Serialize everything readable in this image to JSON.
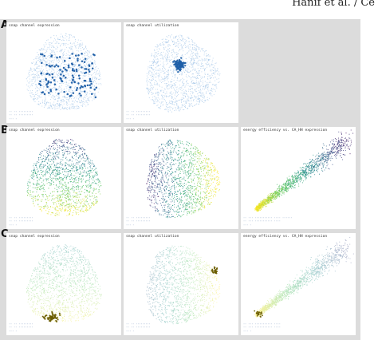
{
  "header": {
    "text": "Hanif et al. / Ce"
  },
  "rows": [
    {
      "letter": "A",
      "panels": [
        {
          "title": "snap channel expression",
          "kind": "blob",
          "palette": "blue",
          "highlight": "scatter-dark",
          "legend": [
            "·· ·· ·········",
            "·· ·· ·········",
            "··· ·"
          ]
        },
        {
          "title": "snap channel utilization",
          "kind": "blob",
          "palette": "blue",
          "highlight": "center-cluster",
          "legend": [
            "·· ·· ·········",
            "·· ·· ·········",
            "··· ·"
          ]
        }
      ]
    },
    {
      "letter": "B",
      "panels": [
        {
          "title": "snap channel expression",
          "kind": "blob",
          "palette": "viridis-vertical",
          "highlight": "none",
          "legend": [
            "·· ·· ·········",
            "·· ·· ·········",
            "··· ·"
          ]
        },
        {
          "title": "snap channel utilization",
          "kind": "blob",
          "palette": "viridis-horizontal",
          "highlight": "none",
          "legend": [
            "·· ·· ·········",
            "·· ·· ·········",
            "··· ·"
          ]
        },
        {
          "title": "energy efficiency vs. CA_HH expression",
          "kind": "diagonal",
          "palette": "viridis-diagonal",
          "highlight": "none",
          "legend": [
            "·· ··· ··········· ···· ······",
            "·· ··· ··········· ····",
            "··· ·"
          ]
        }
      ]
    },
    {
      "letter": "C",
      "panels": [
        {
          "title": "snap channel expression",
          "kind": "blob",
          "palette": "pale",
          "highlight": "bottom-cluster",
          "legend": [
            "·· ·· ·········",
            "·· ·· ·········",
            "··· ·"
          ]
        },
        {
          "title": "snap channel utilization",
          "kind": "blob",
          "palette": "pale-horizontal",
          "highlight": "right-cluster",
          "legend": [
            "·· ·· ·········",
            "·· ·· ·········",
            "··· ·"
          ]
        },
        {
          "title": "energy efficiency vs. CA_HH expression",
          "kind": "diagonal",
          "palette": "pale-diagonal",
          "highlight": "low-end-cluster",
          "legend": [
            "·· ··· ··········· ····",
            "·· ··· ··········· ····",
            "··· ·"
          ]
        }
      ]
    }
  ]
}
